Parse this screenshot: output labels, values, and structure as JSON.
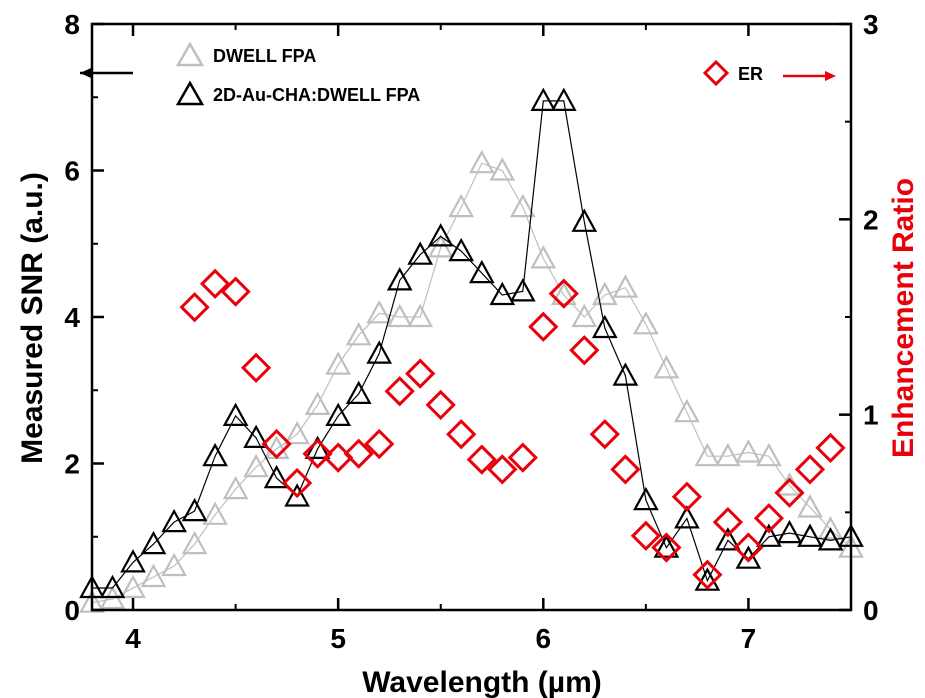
{
  "chart_data": {
    "type": "line",
    "xlabel": "Wavelength (µm)",
    "ylabel_left": "Measured SNR (a.u.)",
    "ylabel_right": "Enhancement Ratio",
    "xlim": [
      3.8,
      7.5
    ],
    "ylim_left": [
      0,
      8
    ],
    "ylim_right": [
      0,
      3
    ],
    "x_ticks": [
      4,
      5,
      6,
      7
    ],
    "y_left_ticks": [
      0,
      2,
      4,
      6,
      8
    ],
    "y_right_ticks": [
      0,
      1,
      2,
      3
    ],
    "grid": false,
    "legend_left": "top-left",
    "legend_right": "top-right",
    "colors": {
      "dwell": "#bfbfbf",
      "au": "#000000",
      "er": "#e8000b"
    },
    "series": [
      {
        "name": "DWELL FPA",
        "axis": "left",
        "marker": "triangle",
        "color": "#bfbfbf",
        "x": [
          3.8,
          3.9,
          4.0,
          4.1,
          4.2,
          4.3,
          4.4,
          4.5,
          4.6,
          4.7,
          4.8,
          4.9,
          5.0,
          5.1,
          5.2,
          5.3,
          5.4,
          5.5,
          5.6,
          5.7,
          5.8,
          5.9,
          6.0,
          6.1,
          6.2,
          6.3,
          6.4,
          6.5,
          6.6,
          6.7,
          6.8,
          6.9,
          7.0,
          7.1,
          7.2,
          7.3,
          7.4,
          7.5
        ],
        "values": [
          0.1,
          0.15,
          0.3,
          0.45,
          0.6,
          0.9,
          1.3,
          1.65,
          1.95,
          2.2,
          2.4,
          2.8,
          3.35,
          3.75,
          4.05,
          4.0,
          4.0,
          4.95,
          5.5,
          6.1,
          6.0,
          5.5,
          4.8,
          4.3,
          4.0,
          4.3,
          4.4,
          3.9,
          3.3,
          2.7,
          2.1,
          2.1,
          2.15,
          2.1,
          1.7,
          1.4,
          1.1,
          0.85
        ]
      },
      {
        "name": "2D-Au-CHA:DWELL FPA",
        "axis": "left",
        "marker": "triangle",
        "color": "#000000",
        "x": [
          3.8,
          3.9,
          4.0,
          4.1,
          4.2,
          4.3,
          4.4,
          4.5,
          4.6,
          4.7,
          4.8,
          4.9,
          5.0,
          5.1,
          5.2,
          5.3,
          5.4,
          5.5,
          5.6,
          5.7,
          5.8,
          5.9,
          6.0,
          6.1,
          6.2,
          6.3,
          6.4,
          6.5,
          6.6,
          6.7,
          6.8,
          6.9,
          7.0,
          7.1,
          7.2,
          7.3,
          7.4,
          7.5
        ],
        "values": [
          0.3,
          0.3,
          0.65,
          0.9,
          1.2,
          1.35,
          2.1,
          2.65,
          2.35,
          1.8,
          1.55,
          2.2,
          2.65,
          2.95,
          3.5,
          4.5,
          4.85,
          5.1,
          4.9,
          4.6,
          4.3,
          4.35,
          6.95,
          6.95,
          5.3,
          3.85,
          3.2,
          1.5,
          0.85,
          1.25,
          0.4,
          0.95,
          0.7,
          1.0,
          1.05,
          1.0,
          0.95,
          1.0
        ]
      },
      {
        "name": "ER",
        "axis": "right",
        "marker": "diamond",
        "color": "#e8000b",
        "x": [
          4.3,
          4.4,
          4.5,
          4.6,
          4.7,
          4.8,
          4.9,
          5.0,
          5.1,
          5.2,
          5.3,
          5.4,
          5.5,
          5.6,
          5.7,
          5.8,
          5.9,
          6.0,
          6.1,
          6.2,
          6.3,
          6.4,
          6.5,
          6.6,
          6.7,
          6.8,
          6.9,
          7.0,
          7.1,
          7.2,
          7.3,
          7.4
        ],
        "values": [
          1.55,
          1.67,
          1.63,
          1.24,
          0.85,
          0.65,
          0.8,
          0.78,
          0.8,
          0.85,
          1.12,
          1.21,
          1.05,
          0.9,
          0.77,
          0.72,
          0.78,
          1.45,
          1.62,
          1.33,
          0.9,
          0.72,
          0.38,
          0.32,
          0.58,
          0.18,
          0.45,
          0.32,
          0.47,
          0.6,
          0.72,
          0.83
        ]
      }
    ]
  },
  "legend": {
    "dwell_label": "DWELL FPA",
    "au_label": "2D-Au-CHA:DWELL FPA",
    "er_label": "ER"
  }
}
